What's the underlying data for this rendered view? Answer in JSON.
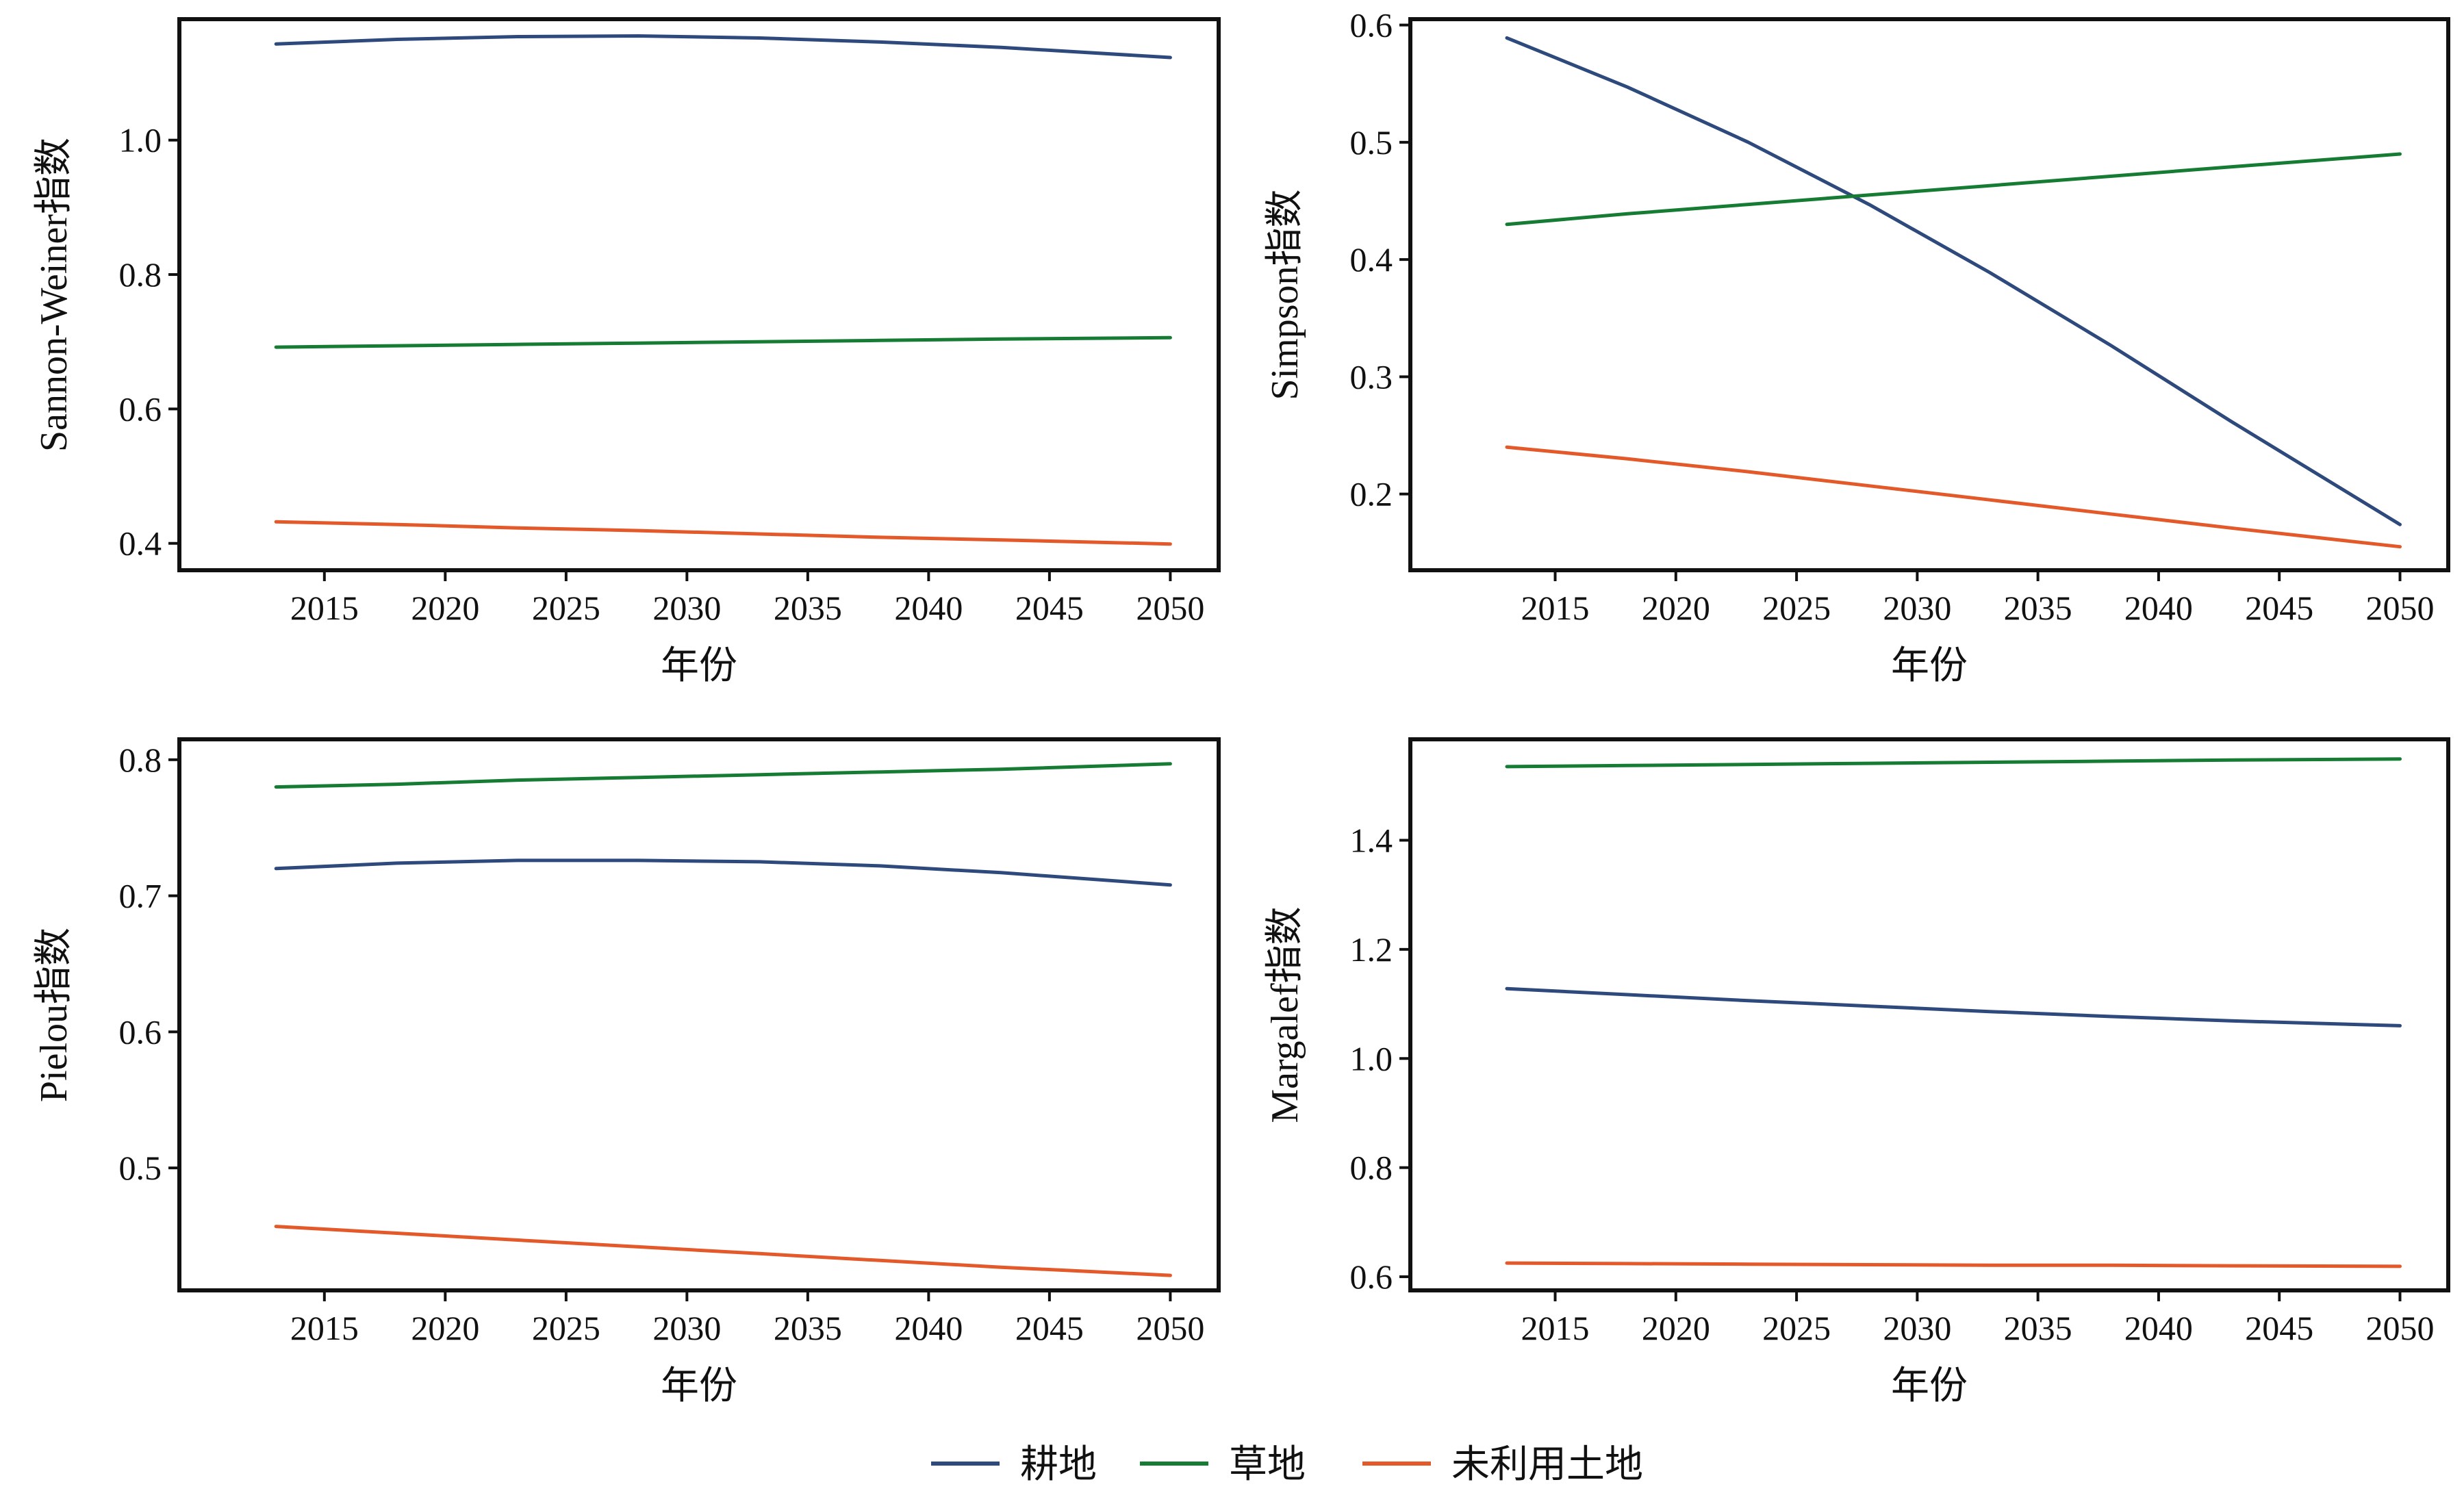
{
  "colors": {
    "cropland": "#2e4a7d",
    "grassland": "#167c34",
    "unused": "#e3592a"
  },
  "legend": {
    "placement": "bottom-center",
    "entries": [
      {
        "label": "耕地",
        "color": "#2e4a7d"
      },
      {
        "label": "草地",
        "color": "#167c34"
      },
      {
        "label": "未利用土地",
        "color": "#e3592a"
      }
    ]
  },
  "chart_data": [
    {
      "type": "line",
      "xlabel": "年份",
      "ylabel": "Sannon-Weiner指数",
      "xlim": [
        2009,
        2052
      ],
      "ylim": [
        0.36,
        1.18
      ],
      "xticks": [
        2015,
        2020,
        2025,
        2030,
        2035,
        2040,
        2045,
        2050
      ],
      "yticks": [
        0.4,
        0.6,
        0.8,
        1.0
      ],
      "x": [
        2013,
        2018,
        2023,
        2028,
        2033,
        2038,
        2043,
        2050
      ],
      "series": [
        {
          "name": "耕地",
          "color": "#2e4a7d",
          "values": [
            1.143,
            1.15,
            1.154,
            1.155,
            1.152,
            1.146,
            1.138,
            1.123
          ]
        },
        {
          "name": "草地",
          "color": "#167c34",
          "values": [
            0.692,
            0.694,
            0.696,
            0.698,
            0.7,
            0.702,
            0.704,
            0.706
          ]
        },
        {
          "name": "未利用土地",
          "color": "#e3592a",
          "values": [
            0.432,
            0.428,
            0.423,
            0.419,
            0.414,
            0.409,
            0.405,
            0.399
          ]
        }
      ]
    },
    {
      "type": "line",
      "xlabel": "年份",
      "ylabel": "Simpson指数",
      "xlim": [
        2009,
        2052
      ],
      "ylim": [
        0.135,
        0.605
      ],
      "xticks": [
        2015,
        2020,
        2025,
        2030,
        2035,
        2040,
        2045,
        2050
      ],
      "yticks": [
        0.2,
        0.3,
        0.4,
        0.5,
        0.6
      ],
      "x": [
        2013,
        2018,
        2023,
        2028,
        2033,
        2038,
        2043,
        2050
      ],
      "series": [
        {
          "name": "耕地",
          "color": "#2e4a7d",
          "values": [
            0.589,
            0.547,
            0.5,
            0.447,
            0.389,
            0.327,
            0.262,
            0.174
          ]
        },
        {
          "name": "草地",
          "color": "#167c34",
          "values": [
            0.43,
            0.439,
            0.447,
            0.455,
            0.463,
            0.471,
            0.479,
            0.49
          ]
        },
        {
          "name": "未利用土地",
          "color": "#e3592a",
          "values": [
            0.24,
            0.23,
            0.219,
            0.207,
            0.195,
            0.183,
            0.171,
            0.155
          ]
        }
      ]
    },
    {
      "type": "line",
      "xlabel": "年份",
      "ylabel": "Pielou指数",
      "xlim": [
        2009,
        2052
      ],
      "ylim": [
        0.41,
        0.815
      ],
      "xticks": [
        2015,
        2020,
        2025,
        2030,
        2035,
        2040,
        2045,
        2050
      ],
      "yticks": [
        0.5,
        0.6,
        0.7,
        0.8
      ],
      "x": [
        2013,
        2018,
        2023,
        2028,
        2033,
        2038,
        2043,
        2050
      ],
      "series": [
        {
          "name": "耕地",
          "color": "#2e4a7d",
          "values": [
            0.72,
            0.724,
            0.726,
            0.726,
            0.725,
            0.722,
            0.717,
            0.708
          ]
        },
        {
          "name": "草地",
          "color": "#167c34",
          "values": [
            0.78,
            0.782,
            0.785,
            0.787,
            0.789,
            0.791,
            0.793,
            0.797
          ]
        },
        {
          "name": "未利用土地",
          "color": "#e3592a",
          "values": [
            0.457,
            0.452,
            0.447,
            0.442,
            0.437,
            0.432,
            0.427,
            0.421
          ]
        }
      ]
    },
    {
      "type": "line",
      "xlabel": "年份",
      "ylabel": "Margalef指数",
      "xlim": [
        2009,
        2052
      ],
      "ylim": [
        0.575,
        1.585
      ],
      "xticks": [
        2015,
        2020,
        2025,
        2030,
        2035,
        2040,
        2045,
        2050
      ],
      "yticks": [
        0.6,
        0.8,
        1.0,
        1.2,
        1.4
      ],
      "x": [
        2013,
        2018,
        2023,
        2028,
        2033,
        2038,
        2043,
        2050
      ],
      "series": [
        {
          "name": "耕地",
          "color": "#2e4a7d",
          "values": [
            1.128,
            1.117,
            1.106,
            1.096,
            1.086,
            1.077,
            1.069,
            1.06
          ]
        },
        {
          "name": "草地",
          "color": "#167c34",
          "values": [
            1.535,
            1.537,
            1.539,
            1.541,
            1.543,
            1.545,
            1.547,
            1.549
          ]
        },
        {
          "name": "未利用土地",
          "color": "#e3592a",
          "values": [
            0.625,
            0.624,
            0.623,
            0.622,
            0.621,
            0.621,
            0.62,
            0.619
          ]
        }
      ]
    }
  ]
}
